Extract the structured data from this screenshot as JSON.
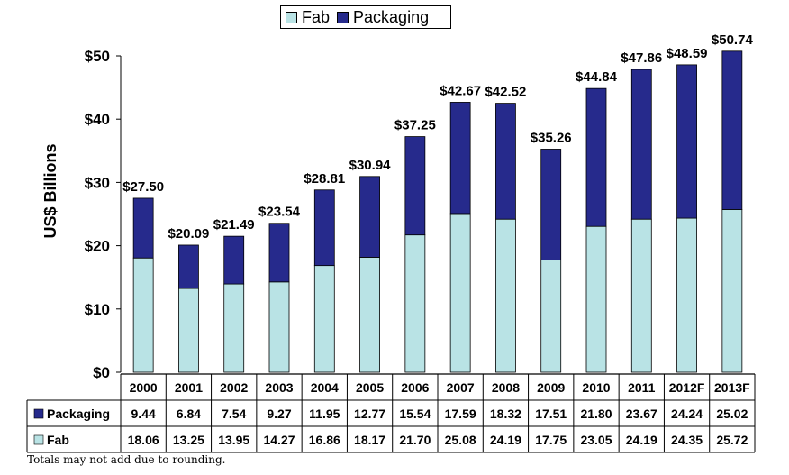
{
  "chart_data": {
    "type": "bar",
    "stacked": true,
    "ylabel": "US$ Billions",
    "ylim": [
      0,
      50
    ],
    "yticks": [
      "$0",
      "$10",
      "$20",
      "$30",
      "$40",
      "$50"
    ],
    "legend": {
      "position": "top-center",
      "entries": [
        "Fab",
        "Packaging"
      ]
    },
    "categories": [
      "2000",
      "2001",
      "2002",
      "2003",
      "2004",
      "2005",
      "2006",
      "2007",
      "2008",
      "2009",
      "2010",
      "2011",
      "2012F",
      "2013F"
    ],
    "series": [
      {
        "name": "Fab",
        "color": "#b9e3e5",
        "values": [
          18.06,
          13.25,
          13.95,
          14.27,
          16.86,
          18.17,
          21.7,
          25.08,
          24.19,
          17.75,
          23.05,
          24.19,
          24.35,
          25.72
        ],
        "labels": [
          "18.06",
          "13.25",
          "13.95",
          "14.27",
          "16.86",
          "18.17",
          "21.70",
          "25.08",
          "24.19",
          "17.75",
          "23.05",
          "24.19",
          "24.35",
          "25.72"
        ]
      },
      {
        "name": "Packaging",
        "color": "#262a8c",
        "values": [
          9.44,
          6.84,
          7.54,
          9.27,
          11.95,
          12.77,
          15.54,
          17.59,
          18.32,
          17.51,
          21.8,
          23.67,
          24.24,
          25.02
        ],
        "labels": [
          "9.44",
          "6.84",
          "7.54",
          "9.27",
          "11.95",
          "12.77",
          "15.54",
          "17.59",
          "18.32",
          "17.51",
          "21.80",
          "23.67",
          "24.24",
          "25.02"
        ]
      }
    ],
    "totals": [
      "$27.50",
      "$20.09",
      "$21.49",
      "$23.54",
      "$28.81",
      "$30.94",
      "$37.25",
      "$42.67",
      "$42.52",
      "$35.26",
      "$44.84",
      "$47.86",
      "$48.59",
      "$50.74"
    ],
    "table_rows": [
      "Packaging",
      "Fab"
    ]
  },
  "legend": {
    "fab": "Fab",
    "packaging": "Packaging"
  },
  "footnote": "Totals may not add due to rounding."
}
